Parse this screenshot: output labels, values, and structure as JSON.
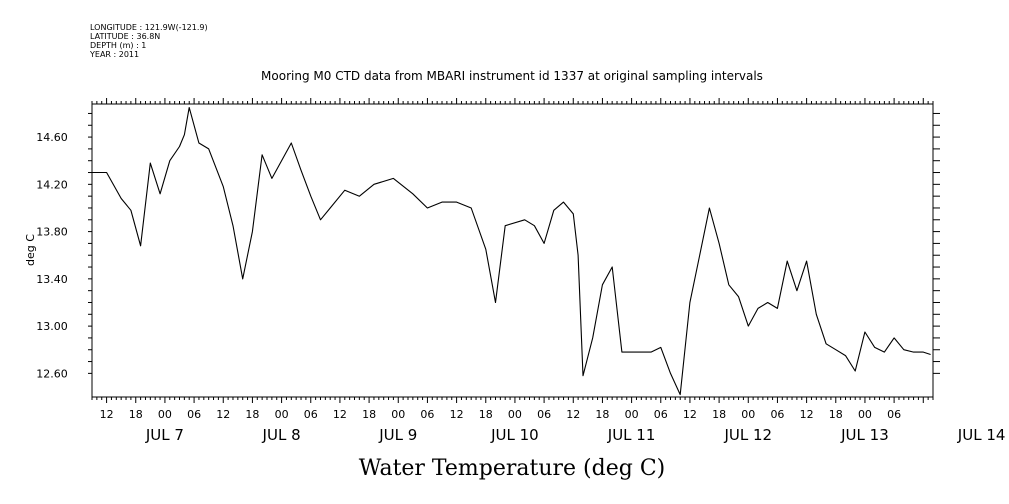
{
  "meta": {
    "longitude": "LONGITUDE : 121.9W(-121.9)",
    "latitude": "LATITUDE : 36.8N",
    "depth": "DEPTH (m) : 1",
    "year": "YEAR : 2011"
  },
  "chart_data": {
    "type": "line",
    "title": "Mooring M0 CTD data from MBARI instrument id 1337 at original sampling intervals",
    "xlabel": "Water Temperature (deg C)",
    "ylabel": "deg C",
    "ylim": [
      12.4,
      14.88
    ],
    "xlim": [
      "2011-07-07T09:00",
      "2011-07-14T14:00"
    ],
    "y_ticks": [
      "12.60",
      "13.00",
      "13.40",
      "13.80",
      "14.20",
      "14.60"
    ],
    "hour_ticks": [
      "12",
      "18",
      "00",
      "06",
      "12",
      "18",
      "00",
      "06",
      "12",
      "18",
      "00",
      "06",
      "12",
      "18",
      "00",
      "06",
      "12",
      "18",
      "00",
      "06",
      "12",
      "18",
      "00",
      "06",
      "12",
      "18",
      "00",
      "06"
    ],
    "date_labels": [
      "JUL  7",
      "JUL  8",
      "JUL  9",
      "JUL 10",
      "JUL 11",
      "JUL 12",
      "JUL 13",
      "JUL 14"
    ],
    "grid": false,
    "series": [
      {
        "line_color": "#000000",
        "x": [
          "2011-07-07T09:00",
          "2011-07-07T12:00",
          "2011-07-07T15:00",
          "2011-07-07T17:00",
          "2011-07-07T19:00",
          "2011-07-07T21:00",
          "2011-07-07T23:00",
          "2011-07-08T01:00",
          "2011-07-08T03:00",
          "2011-07-08T04:00",
          "2011-07-08T05:00",
          "2011-07-08T07:00",
          "2011-07-08T09:00",
          "2011-07-08T12:00",
          "2011-07-08T14:00",
          "2011-07-08T16:00",
          "2011-07-08T18:00",
          "2011-07-08T20:00",
          "2011-07-08T22:00",
          "2011-07-09T02:00",
          "2011-07-09T04:00",
          "2011-07-09T06:00",
          "2011-07-09T08:00",
          "2011-07-09T10:00",
          "2011-07-09T13:00",
          "2011-07-09T16:00",
          "2011-07-09T19:00",
          "2011-07-09T23:00",
          "2011-07-10T03:00",
          "2011-07-10T06:00",
          "2011-07-10T09:00",
          "2011-07-10T12:00",
          "2011-07-10T15:00",
          "2011-07-10T18:00",
          "2011-07-10T20:00",
          "2011-07-10T22:00",
          "2011-07-11T02:00",
          "2011-07-11T04:00",
          "2011-07-11T06:00",
          "2011-07-11T08:00",
          "2011-07-11T10:00",
          "2011-07-11T12:00",
          "2011-07-11T13:00",
          "2011-07-11T14:00",
          "2011-07-11T16:00",
          "2011-07-11T18:00",
          "2011-07-11T20:00",
          "2011-07-11T22:00",
          "2011-07-12T02:00",
          "2011-07-12T04:00",
          "2011-07-12T06:00",
          "2011-07-12T08:00",
          "2011-07-12T10:00",
          "2011-07-12T12:00",
          "2011-07-12T14:00",
          "2011-07-12T16:00",
          "2011-07-12T18:00",
          "2011-07-12T20:00",
          "2011-07-12T22:00",
          "2011-07-13T00:00",
          "2011-07-13T02:00",
          "2011-07-13T04:00",
          "2011-07-13T06:00",
          "2011-07-13T08:00",
          "2011-07-13T10:00",
          "2011-07-13T12:00",
          "2011-07-13T14:00",
          "2011-07-13T16:00",
          "2011-07-13T18:00",
          "2011-07-13T20:00",
          "2011-07-13T22:00",
          "2011-07-14T00:00",
          "2011-07-14T02:00",
          "2011-07-14T04:00",
          "2011-07-14T06:00",
          "2011-07-14T08:00",
          "2011-07-14T10:00",
          "2011-07-14T12:00",
          "2011-07-14T13:30"
        ],
        "y": [
          14.3,
          14.3,
          14.08,
          13.98,
          13.68,
          14.38,
          14.12,
          14.4,
          14.52,
          14.62,
          14.85,
          14.55,
          14.5,
          14.18,
          13.85,
          13.4,
          13.8,
          14.45,
          14.25,
          14.55,
          14.32,
          14.1,
          13.9,
          14.0,
          14.15,
          14.1,
          14.2,
          14.25,
          14.12,
          14.0,
          14.05,
          14.05,
          14.0,
          13.65,
          13.2,
          13.85,
          13.9,
          13.85,
          13.7,
          13.98,
          14.05,
          13.95,
          13.6,
          12.58,
          12.9,
          13.35,
          13.5,
          12.78,
          12.78,
          12.78,
          12.82,
          12.6,
          12.42,
          13.2,
          13.6,
          14.0,
          13.7,
          13.35,
          13.25,
          13.0,
          13.15,
          13.2,
          13.15,
          13.55,
          13.3,
          13.55,
          13.1,
          12.85,
          12.8,
          12.75,
          12.62,
          12.95,
          12.82,
          12.78,
          12.9,
          12.8,
          12.78,
          12.78,
          12.76
        ]
      }
    ]
  }
}
